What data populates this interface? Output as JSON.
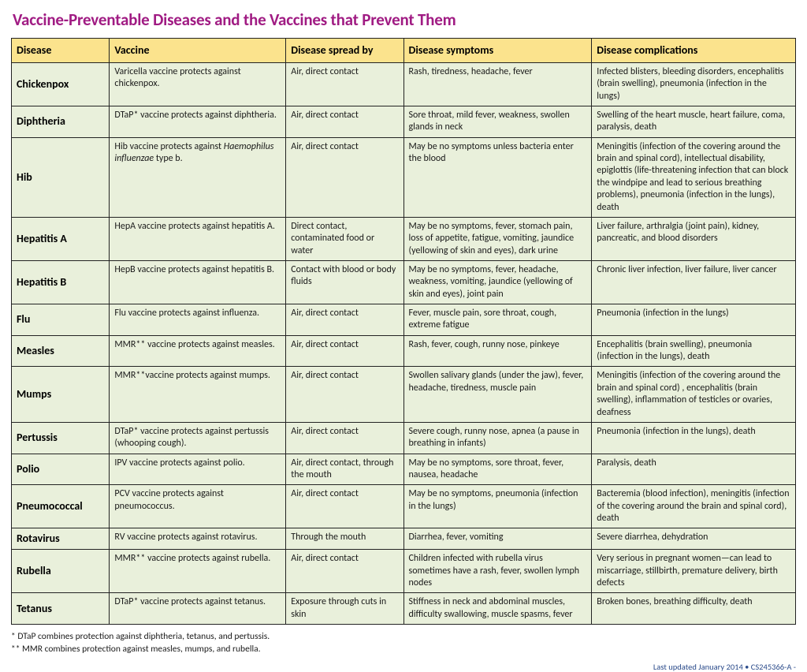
{
  "title": "Vaccine-Preventable Diseases and the Vaccines that Prevent Them",
  "columns": [
    "Disease",
    "Vaccine",
    "Disease spread by",
    "Disease symptoms",
    "Disease complications"
  ],
  "col_widths": [
    "12.5%",
    "22.5%",
    "15%",
    "24%",
    "26%"
  ],
  "rows": [
    {
      "disease": "Chickenpox",
      "vaccine": "Varicella vaccine protects against chickenpox.",
      "spread": "Air, direct contact",
      "symptoms": "Rash, tiredness, headache, fever",
      "complications": "Infected blisters, bleeding disorders, encephalitis (brain swelling), pneumonia (infection in the lungs)"
    },
    {
      "disease": "Diphtheria",
      "vaccine": "DTaP* vaccine protects against diphtheria.",
      "spread": "Air, direct contact",
      "symptoms": "Sore throat, mild fever, weakness, swollen glands in neck",
      "complications": "Swelling of the heart muscle, heart failure, coma, paralysis, death"
    },
    {
      "disease": "Hib",
      "vaccine_html": "Hib vaccine protects against <em>Haemophilus influenzae</em> type b.",
      "spread": "Air, direct contact",
      "symptoms": "May be no symptoms unless bacteria enter the blood",
      "complications": "Meningitis (infection of the covering around the brain and spinal cord), intellectual disability, epiglottis (life-threatening infection that can block the windpipe and lead to serious breathing problems), pneumonia (infection in the lungs), death"
    },
    {
      "disease": "Hepatitis A",
      "vaccine": "HepA vaccine protects against hepatitis A.",
      "spread": "Direct contact, contaminated food or water",
      "symptoms": "May be no symptoms, fever, stomach pain, loss of appetite, fatigue, vomiting, jaundice (yellowing of skin and eyes), dark urine",
      "complications": "Liver failure, arthralgia (joint pain), kidney, pancreatic, and blood disorders"
    },
    {
      "disease": "Hepatitis B",
      "vaccine": "HepB vaccine protects against hepatitis B.",
      "spread": "Contact with blood or body fluids",
      "symptoms": "May be no symptoms, fever, headache, weakness, vomiting, jaundice (yellowing of skin and eyes), joint pain",
      "complications": "Chronic liver infection, liver failure, liver cancer"
    },
    {
      "disease": "Flu",
      "vaccine": "Flu vaccine protects against influenza.",
      "spread": "Air, direct contact",
      "symptoms": "Fever, muscle pain, sore throat, cough, extreme fatigue",
      "complications": "Pneumonia (infection in the lungs)"
    },
    {
      "disease": "Measles",
      "vaccine": "MMR** vaccine protects against measles.",
      "spread": "Air, direct contact",
      "symptoms": "Rash, fever, cough, runny nose, pinkeye",
      "complications": "Encephalitis (brain swelling), pneumonia (infection in the lungs), death"
    },
    {
      "disease": "Mumps",
      "vaccine": "MMR**vaccine protects against mumps.",
      "spread": "Air, direct contact",
      "symptoms": "Swollen salivary glands (under the jaw), fever, headache, tiredness, muscle pain",
      "complications": "Meningitis (infection of the covering around the brain and spinal cord) , encephalitis (brain swelling), inflammation of testicles or ovaries, deafness"
    },
    {
      "disease": "Pertussis",
      "vaccine": "DTaP* vaccine protects against pertussis (whooping cough).",
      "spread": "Air, direct contact",
      "symptoms": "Severe cough, runny nose, apnea (a pause in breathing in infants)",
      "complications": "Pneumonia (infection in the lungs), death"
    },
    {
      "disease": "Polio",
      "vaccine": "IPV vaccine protects against polio.",
      "spread": "Air, direct contact, through the mouth",
      "symptoms": "May be no symptoms, sore throat, fever, nausea, headache",
      "complications": "Paralysis, death"
    },
    {
      "disease": "Pneumococcal",
      "vaccine": "PCV vaccine protects against pneumococcus.",
      "spread": "Air, direct contact",
      "symptoms": "May be no symptoms, pneumonia (infection in the lungs)",
      "complications": "Bacteremia (blood infection), meningitis (infection of the covering around the brain and spinal cord), death"
    },
    {
      "disease": "Rotavirus",
      "vaccine": "RV vaccine protects against rotavirus.",
      "spread": "Through the mouth",
      "symptoms": "Diarrhea, fever, vomiting",
      "complications": "Severe diarrhea, dehydration"
    },
    {
      "disease": "Rubella",
      "vaccine": "MMR** vaccine protects against rubella.",
      "spread": "Air, direct contact",
      "symptoms": "Children infected with rubella virus sometimes have a rash, fever, swollen lymph nodes",
      "complications": "Very serious in pregnant women—can lead to miscarriage, stillbirth, premature delivery, birth defects"
    },
    {
      "disease": "Tetanus",
      "vaccine": "DTaP* vaccine protects against tetanus.",
      "spread": "Exposure through cuts in skin",
      "symptoms": "Stiffness in neck and abdominal muscles, difficulty swallowing,  muscle spasms, fever",
      "complications": "Broken bones, breathing difficulty, death"
    }
  ],
  "footnotes": [
    "* DTaP combines protection against diphtheria, tetanus, and pertussis.",
    "** MMR combines protection against measles, mumps, and rubella."
  ],
  "updated": "Last updated January 2014 • CS245366-A -",
  "colors": {
    "title": "#a01b83",
    "header_bg": "#fbe38d",
    "row_bg": "#e9f0db",
    "border": "#232323",
    "updated": "#2a4a8a"
  }
}
